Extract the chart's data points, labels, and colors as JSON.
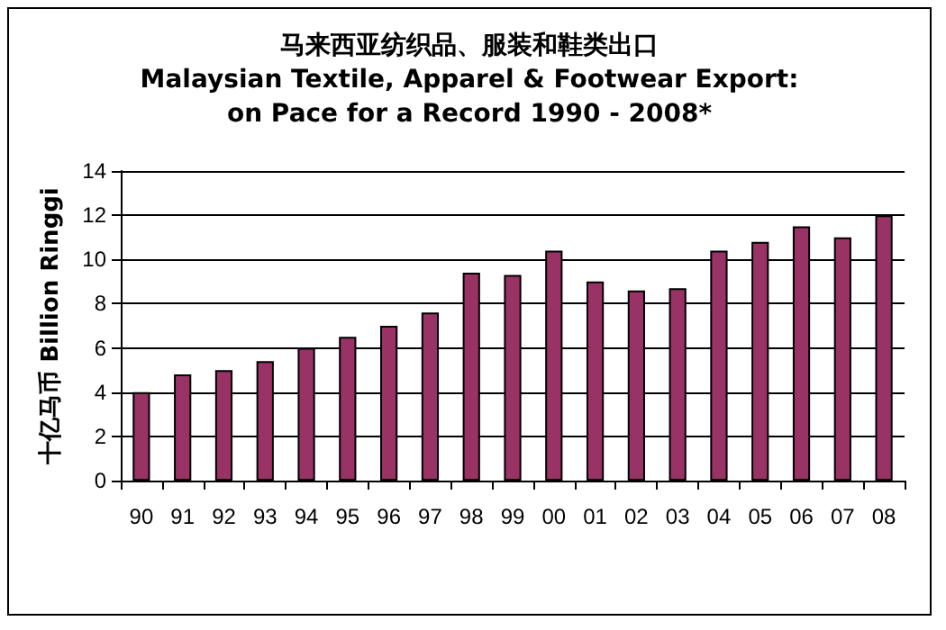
{
  "chart_data": {
    "type": "bar",
    "title": "马来西亚纺织品、服装和鞋类出口\nMalaysian Textile, Apparel & Footwear Export:\non Pace for a Record 1990 - 2008*",
    "ylabel": "十亿马币 Billion Ringgi",
    "categories": [
      "90",
      "91",
      "92",
      "93",
      "94",
      "95",
      "96",
      "97",
      "98",
      "99",
      "00",
      "01",
      "02",
      "03",
      "04",
      "05",
      "06",
      "07",
      "08"
    ],
    "values": [
      4,
      4.8,
      5,
      5.4,
      6,
      6.5,
      7,
      7.6,
      9.4,
      9.3,
      10.4,
      9,
      8.6,
      8.7,
      10.4,
      10.8,
      11.5,
      11,
      12
    ],
    "color": "#993366",
    "ylim": [
      0,
      14
    ],
    "yticks": [
      0,
      2,
      4,
      6,
      8,
      10,
      12,
      14
    ],
    "grid": true
  }
}
